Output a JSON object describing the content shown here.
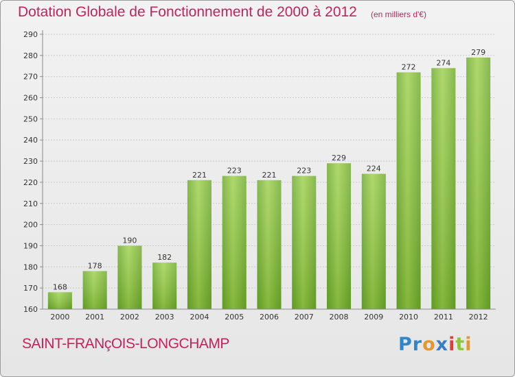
{
  "chart_data": {
    "type": "bar",
    "title": "Dotation Globale de Fonctionnement de 2000 à 2012",
    "subtitle": "(en milliers d'€)",
    "categories": [
      "2000",
      "2001",
      "2002",
      "2003",
      "2004",
      "2005",
      "2006",
      "2007",
      "2008",
      "2009",
      "2010",
      "2011",
      "2012"
    ],
    "values": [
      168,
      178,
      190,
      182,
      221,
      223,
      221,
      223,
      229,
      224,
      272,
      274,
      279
    ],
    "ylim": [
      160,
      290
    ],
    "yticks": [
      160,
      170,
      180,
      190,
      200,
      210,
      220,
      230,
      240,
      250,
      260,
      270,
      280,
      290
    ],
    "grid": true,
    "bar_color": "#7dbd2e",
    "xlabel": "",
    "ylabel": ""
  },
  "footer": {
    "commune": "SAINT-FRANçOIS-LONGCHAMP",
    "logo": {
      "p1": "Pr",
      "p2": "o",
      "p3": "x",
      "p4": "i",
      "p5": "t",
      "p6": "i"
    }
  },
  "colors": {
    "accent": "#c0245c",
    "axis": "#888888"
  }
}
